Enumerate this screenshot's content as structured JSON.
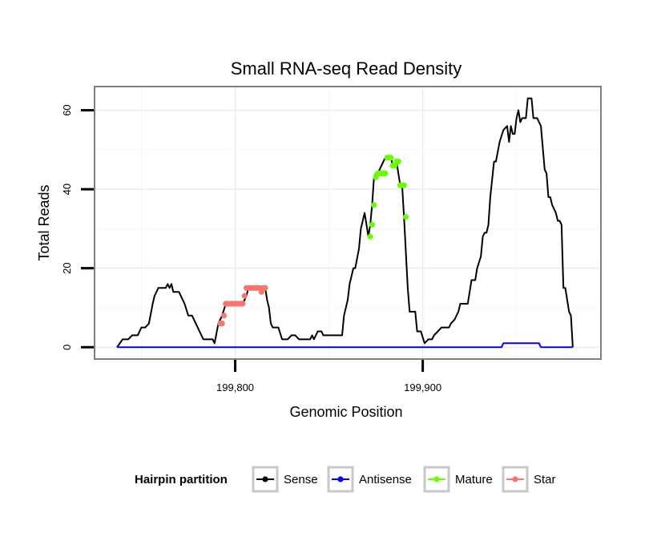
{
  "chart_data": {
    "type": "line",
    "title": "Small RNA-seq Read Density",
    "xlabel": "Genomic Position",
    "ylabel": "Total Reads",
    "xlim": [
      199725,
      199995
    ],
    "ylim": [
      -3,
      66
    ],
    "x_ticks": [
      {
        "value": 199800,
        "label": "199,800"
      },
      {
        "value": 199900,
        "label": "199,900"
      }
    ],
    "y_ticks": [
      {
        "value": 0,
        "label": "0"
      },
      {
        "value": 20,
        "label": "20"
      },
      {
        "value": 40,
        "label": "40"
      },
      {
        "value": 60,
        "label": "60"
      }
    ],
    "grid": true,
    "legend": {
      "title": "Hairpin partition",
      "position": "bottom",
      "entries": [
        {
          "label": "Sense",
          "color": "#000000"
        },
        {
          "label": "Antisense",
          "color": "#0000ff"
        },
        {
          "label": "Mature",
          "color": "#66ff00"
        },
        {
          "label": "Star",
          "color": "#f8766d"
        }
      ]
    },
    "series": [
      {
        "name": "Sense",
        "color": "#000000",
        "style": "line",
        "points": [
          [
            199737,
            0
          ],
          [
            199740,
            2
          ],
          [
            199743,
            2
          ],
          [
            199745,
            3
          ],
          [
            199748,
            3
          ],
          [
            199750,
            5
          ],
          [
            199752,
            5
          ],
          [
            199754,
            6
          ],
          [
            199756,
            11
          ],
          [
            199757,
            13
          ],
          [
            199759,
            15
          ],
          [
            199763,
            15
          ],
          [
            199764,
            16
          ],
          [
            199765,
            15
          ],
          [
            199766,
            16
          ],
          [
            199767,
            14
          ],
          [
            199770,
            14
          ],
          [
            199773,
            11
          ],
          [
            199775,
            8
          ],
          [
            199777,
            8
          ],
          [
            199779,
            6
          ],
          [
            199781,
            4
          ],
          [
            199783,
            2
          ],
          [
            199786,
            2
          ],
          [
            199788,
            2
          ],
          [
            199789,
            1
          ],
          [
            199791,
            6
          ],
          [
            199793,
            8
          ],
          [
            199795,
            11
          ],
          [
            199804,
            11
          ],
          [
            199806,
            13
          ],
          [
            199807,
            15
          ],
          [
            199816,
            15
          ],
          [
            199817,
            12
          ],
          [
            199818,
            10
          ],
          [
            199819,
            6
          ],
          [
            199820,
            5
          ],
          [
            199823,
            5
          ],
          [
            199825,
            2
          ],
          [
            199828,
            2
          ],
          [
            199830,
            3
          ],
          [
            199832,
            3
          ],
          [
            199834,
            2
          ],
          [
            199840,
            2
          ],
          [
            199841,
            3
          ],
          [
            199842,
            2
          ],
          [
            199844,
            4
          ],
          [
            199846,
            4
          ],
          [
            199847,
            3
          ],
          [
            199857,
            3
          ],
          [
            199858,
            8
          ],
          [
            199860,
            12
          ],
          [
            199861,
            16
          ],
          [
            199863,
            20
          ],
          [
            199864,
            20
          ],
          [
            199866,
            25
          ],
          [
            199867,
            30
          ],
          [
            199869,
            34
          ],
          [
            199871,
            28
          ],
          [
            199872,
            31
          ],
          [
            199873,
            36
          ],
          [
            199874,
            43
          ],
          [
            199875,
            44
          ],
          [
            199876,
            44
          ],
          [
            199880,
            48
          ],
          [
            199883,
            48
          ],
          [
            199884,
            46
          ],
          [
            199886,
            47
          ],
          [
            199888,
            41
          ],
          [
            199889,
            41
          ],
          [
            199890,
            33
          ],
          [
            199892,
            15
          ],
          [
            199893,
            9
          ],
          [
            199896,
            9
          ],
          [
            199897,
            4
          ],
          [
            199899,
            4
          ],
          [
            199901,
            1
          ],
          [
            199903,
            2
          ],
          [
            199905,
            2
          ],
          [
            199906,
            3
          ],
          [
            199908,
            4
          ],
          [
            199910,
            5
          ],
          [
            199914,
            5
          ],
          [
            199915,
            6
          ],
          [
            199917,
            7
          ],
          [
            199919,
            9
          ],
          [
            199920,
            11
          ],
          [
            199924,
            11
          ],
          [
            199925,
            14
          ],
          [
            199926,
            17
          ],
          [
            199928,
            17
          ],
          [
            199929,
            20
          ],
          [
            199931,
            23
          ],
          [
            199932,
            28
          ],
          [
            199933,
            29
          ],
          [
            199934,
            29
          ],
          [
            199935,
            31
          ],
          [
            199936,
            38
          ],
          [
            199938,
            47
          ],
          [
            199939,
            47
          ],
          [
            199941,
            52
          ],
          [
            199943,
            55
          ],
          [
            199945,
            56
          ],
          [
            199946,
            52
          ],
          [
            199947,
            56
          ],
          [
            199948,
            54
          ],
          [
            199949,
            54
          ],
          [
            199950,
            58
          ],
          [
            199951,
            60
          ],
          [
            199952,
            57
          ],
          [
            199953,
            58
          ],
          [
            199955,
            58
          ],
          [
            199956,
            63
          ],
          [
            199958,
            63
          ],
          [
            199959,
            58
          ],
          [
            199961,
            58
          ],
          [
            199963,
            56
          ],
          [
            199965,
            45
          ],
          [
            199966,
            44
          ],
          [
            199967,
            38
          ],
          [
            199968,
            38
          ],
          [
            199969,
            36
          ],
          [
            199970,
            35
          ],
          [
            199971,
            34
          ],
          [
            199972,
            32
          ],
          [
            199973,
            32
          ],
          [
            199974,
            31
          ],
          [
            199975,
            15
          ],
          [
            199976,
            15
          ],
          [
            199977,
            12
          ],
          [
            199978,
            9
          ],
          [
            199979,
            8
          ],
          [
            199980,
            0
          ]
        ]
      },
      {
        "name": "Antisense",
        "color": "#0000ff",
        "style": "line",
        "points": [
          [
            199737,
            0
          ],
          [
            199942,
            0
          ],
          [
            199943,
            1
          ],
          [
            199962,
            1
          ],
          [
            199963,
            0
          ],
          [
            199980,
            0
          ]
        ]
      },
      {
        "name": "Mature",
        "color": "#66ff00",
        "style": "points",
        "points": [
          [
            199872,
            28
          ],
          [
            199873,
            31
          ],
          [
            199874,
            36
          ],
          [
            199875,
            43
          ],
          [
            199876,
            44
          ],
          [
            199877,
            44
          ],
          [
            199878,
            44
          ],
          [
            199879,
            44
          ],
          [
            199880,
            44
          ],
          [
            199881,
            48
          ],
          [
            199882,
            48
          ],
          [
            199883,
            48
          ],
          [
            199884,
            46
          ],
          [
            199885,
            46
          ],
          [
            199886,
            47
          ],
          [
            199887,
            47
          ],
          [
            199888,
            41
          ],
          [
            199889,
            41
          ],
          [
            199890,
            41
          ],
          [
            199891,
            33
          ]
        ]
      },
      {
        "name": "Star",
        "color": "#f8766d",
        "style": "points",
        "points": [
          [
            199792,
            6
          ],
          [
            199793,
            6
          ],
          [
            199794,
            8
          ],
          [
            199795,
            11
          ],
          [
            199796,
            11
          ],
          [
            199797,
            11
          ],
          [
            199798,
            11
          ],
          [
            199799,
            11
          ],
          [
            199800,
            11
          ],
          [
            199801,
            11
          ],
          [
            199802,
            11
          ],
          [
            199803,
            11
          ],
          [
            199804,
            11
          ],
          [
            199805,
            13
          ],
          [
            199806,
            15
          ],
          [
            199807,
            15
          ],
          [
            199808,
            15
          ],
          [
            199809,
            15
          ],
          [
            199810,
            15
          ],
          [
            199811,
            15
          ],
          [
            199812,
            15
          ],
          [
            199813,
            15
          ],
          [
            199814,
            14
          ],
          [
            199815,
            15
          ],
          [
            199816,
            15
          ]
        ]
      }
    ]
  }
}
